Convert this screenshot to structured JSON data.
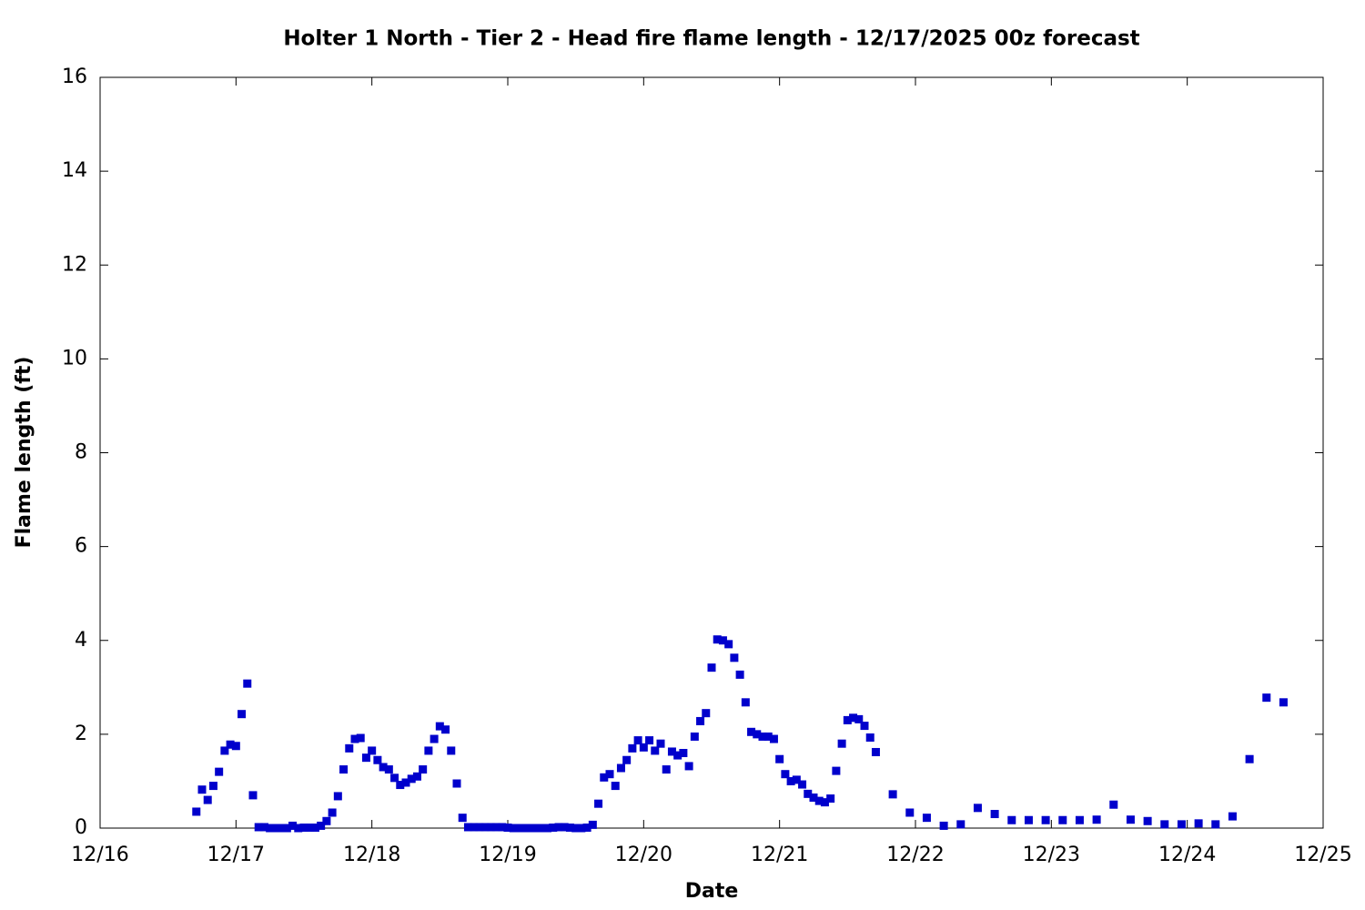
{
  "chart_data": {
    "type": "scatter",
    "title": "Holter 1 North - Tier 2 - Head fire flame length - 12/17/2025 00z forecast",
    "xlabel": "Date",
    "ylabel": "Flame length (ft)",
    "xlim": [
      0,
      216
    ],
    "ylim": [
      0,
      16
    ],
    "xticks": [
      {
        "value": 0,
        "label": "12/16"
      },
      {
        "value": 24,
        "label": "12/17"
      },
      {
        "value": 48,
        "label": "12/18"
      },
      {
        "value": 72,
        "label": "12/19"
      },
      {
        "value": 96,
        "label": "12/20"
      },
      {
        "value": 120,
        "label": "12/21"
      },
      {
        "value": 144,
        "label": "12/22"
      },
      {
        "value": 168,
        "label": "12/23"
      },
      {
        "value": 192,
        "label": "12/24"
      },
      {
        "value": 216,
        "label": "12/25"
      }
    ],
    "yticks": [
      0,
      2,
      4,
      6,
      8,
      10,
      12,
      14,
      16
    ],
    "series": [
      {
        "color": "#0000cc",
        "x": [
          17,
          18,
          19,
          20,
          21,
          22,
          23,
          24,
          25,
          26,
          27,
          28,
          29,
          30,
          31,
          32,
          33,
          34,
          35,
          36,
          37,
          38,
          39,
          40,
          41,
          42,
          43,
          44,
          45,
          46,
          47,
          48,
          49,
          50,
          51,
          52,
          53,
          54,
          55,
          56,
          57,
          58,
          59,
          60,
          61,
          62,
          63,
          64,
          65,
          66,
          67,
          68,
          69,
          70,
          71,
          72,
          73,
          74,
          75,
          76,
          77,
          78,
          79,
          80,
          81,
          82,
          83,
          84,
          85,
          86,
          87,
          88,
          89,
          90,
          91,
          92,
          93,
          94,
          95,
          96,
          97,
          98,
          99,
          100,
          101,
          102,
          103,
          104,
          105,
          106,
          107,
          108,
          109,
          110,
          111,
          112,
          113,
          114,
          115,
          116,
          117,
          118,
          119,
          120,
          121,
          122,
          123,
          124,
          125,
          126,
          127,
          128,
          129,
          130,
          131,
          132,
          133,
          134,
          135,
          136,
          137,
          140,
          143,
          146,
          149,
          152,
          155,
          158,
          161,
          164,
          167,
          170,
          173,
          176,
          179,
          182,
          185,
          188,
          191,
          194,
          197,
          200,
          203,
          206,
          209
        ],
        "values": [
          0.35,
          0.82,
          0.6,
          0.9,
          1.2,
          1.65,
          1.78,
          1.75,
          2.43,
          3.08,
          0.7,
          0.02,
          0.02,
          0,
          0,
          0,
          0,
          0.05,
          0,
          0.01,
          0.01,
          0.01,
          0.05,
          0.15,
          0.33,
          0.68,
          1.25,
          1.7,
          1.9,
          1.92,
          1.5,
          1.65,
          1.45,
          1.3,
          1.25,
          1.07,
          0.92,
          0.97,
          1.05,
          1.1,
          1.25,
          1.65,
          1.9,
          2.17,
          2.1,
          1.65,
          0.95,
          0.22,
          0.02,
          0.02,
          0.02,
          0.02,
          0.02,
          0.02,
          0.02,
          0.01,
          0,
          0,
          0,
          0,
          0,
          0,
          0,
          0.01,
          0.02,
          0.02,
          0.01,
          0,
          0,
          0.01,
          0.07,
          0.52,
          1.08,
          1.15,
          0.9,
          1.28,
          1.45,
          1.7,
          1.87,
          1.72,
          1.87,
          1.65,
          1.8,
          1.25,
          1.63,
          1.55,
          1.6,
          1.32,
          1.95,
          2.28,
          2.45,
          3.42,
          4.02,
          4.0,
          3.92,
          3.63,
          3.27,
          2.68,
          2.05,
          2.0,
          1.95,
          1.95,
          1.9,
          1.47,
          1.15,
          1.0,
          1.03,
          0.93,
          0.73,
          0.65,
          0.58,
          0.55,
          0.63,
          1.22,
          1.8,
          2.3,
          2.35,
          2.32,
          2.18,
          1.93,
          1.62,
          0.72,
          0.33,
          0.22,
          0.05,
          0.08,
          0.43,
          0.3,
          0.17,
          0.17,
          0.17,
          0.17,
          0.17,
          0.18,
          0.5,
          0.18,
          0.15,
          0.08,
          0.08,
          0.1,
          0.08,
          0.25,
          1.47,
          2.78,
          2.68
        ]
      }
    ]
  }
}
